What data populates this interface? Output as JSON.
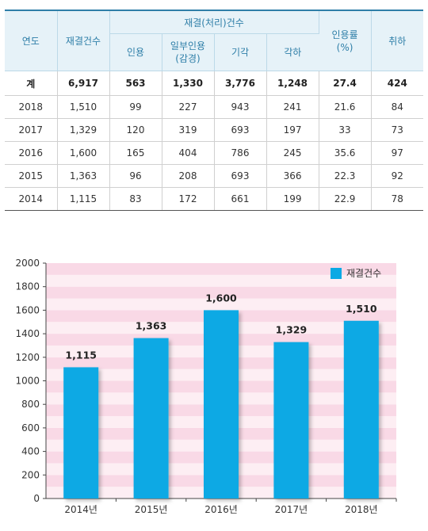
{
  "table": {
    "header": {
      "year": "연도",
      "cases": "재결건수",
      "group": "재결(처리)건수",
      "accepted": "인용",
      "partial_line1": "일부인용",
      "partial_line2": "(감경)",
      "dismissed": "기각",
      "rejected": "각하",
      "rate_line1": "인용률",
      "rate_line2": "(%)",
      "withdrawn": "취하"
    },
    "total": {
      "label": "계",
      "cases": "6,917",
      "accepted": "563",
      "partial": "1,330",
      "dismissed": "3,776",
      "rejected": "1,248",
      "rate": "27.4",
      "withdrawn": "424"
    },
    "rows": [
      {
        "year": "2018",
        "cases": "1,510",
        "accepted": "99",
        "partial": "227",
        "dismissed": "943",
        "rejected": "241",
        "rate": "21.6",
        "withdrawn": "84"
      },
      {
        "year": "2017",
        "cases": "1,329",
        "accepted": "120",
        "partial": "319",
        "dismissed": "693",
        "rejected": "197",
        "rate": "33",
        "withdrawn": "73"
      },
      {
        "year": "2016",
        "cases": "1,600",
        "accepted": "165",
        "partial": "404",
        "dismissed": "786",
        "rejected": "245",
        "rate": "35.6",
        "withdrawn": "97"
      },
      {
        "year": "2015",
        "cases": "1,363",
        "accepted": "96",
        "partial": "208",
        "dismissed": "693",
        "rejected": "366",
        "rate": "22.3",
        "withdrawn": "92"
      },
      {
        "year": "2014",
        "cases": "1,115",
        "accepted": "83",
        "partial": "172",
        "dismissed": "661",
        "rejected": "199",
        "rate": "22.9",
        "withdrawn": "78"
      }
    ]
  },
  "chart_data": {
    "type": "bar",
    "categories": [
      "2014년",
      "2015년",
      "2016년",
      "2017년",
      "2018년"
    ],
    "series": [
      {
        "name": "재결건수",
        "values": [
          1115,
          1363,
          1600,
          1329,
          1510
        ],
        "labels": [
          "1,115",
          "1,363",
          "1,600",
          "1,329",
          "1,510"
        ]
      }
    ],
    "ylim": [
      0,
      2000
    ],
    "yticks": [
      0,
      200,
      400,
      600,
      800,
      1000,
      1200,
      1400,
      1600,
      1800,
      2000
    ],
    "grid": "horizontal bands",
    "legend": "top-right",
    "colors": {
      "bar": "#0aa9e4",
      "band_light": "#fdeef3",
      "band_dark": "#f9d9e6"
    }
  }
}
